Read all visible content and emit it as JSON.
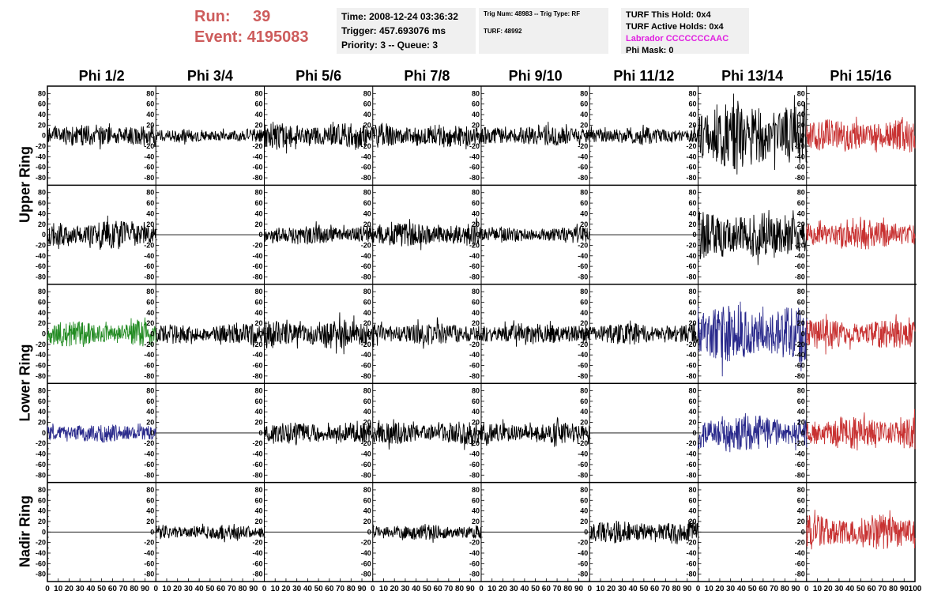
{
  "run_info": {
    "run_label": "Run:",
    "run_value": "39",
    "event_label": "Event:",
    "event_value": "4195083"
  },
  "time_box": {
    "time": "Time: 2008-12-24 03:36:32",
    "trigger": "Trigger: 457.693076 ms",
    "priority": "Priority: 3 -- Queue: 3"
  },
  "trig_box": {
    "trig": "Trig Num: 48983 -- Trig Type: RF",
    "turf": "TURF: 48992"
  },
  "turf_box": {
    "this_hold": "TURF This Hold: 0x4",
    "active_holds": "TURF Active Holds: 0x4",
    "labrador": "Labrador CCCCCCCAAC",
    "phi_mask": "Phi Mask: 0"
  },
  "colors": {
    "black": "#000000",
    "red": "#c83232",
    "green": "#228b22",
    "blue": "#2a2a8c",
    "title_red": "#cd5c5c",
    "magenta": "#e020e0"
  },
  "chart_data": {
    "type": "line",
    "columns": [
      "Phi 1/2",
      "Phi 3/4",
      "Phi 5/6",
      "Phi 7/8",
      "Phi 9/10",
      "Phi 11/12",
      "Phi 13/14",
      "Phi 15/16"
    ],
    "ring_labels": [
      {
        "name": "Upper Ring",
        "rows": [
          0,
          1
        ]
      },
      {
        "name": "Lower Ring",
        "rows": [
          2,
          3
        ]
      },
      {
        "name": "Nadir Ring",
        "rows": [
          4
        ]
      }
    ],
    "xlim": [
      0,
      100
    ],
    "x_ticks": [
      0,
      10,
      20,
      30,
      40,
      50,
      60,
      70,
      80,
      90,
      100
    ],
    "ylim": [
      -85,
      85
    ],
    "y_ticks": [
      -80,
      -60,
      -40,
      -20,
      0,
      20,
      40,
      60,
      80
    ],
    "n_samples": 260,
    "grid": false,
    "panels": [
      [
        {
          "color": "black",
          "amp": 18,
          "seed": 11
        },
        {
          "color": "black",
          "amp": 11,
          "seed": 12
        },
        {
          "color": "black",
          "amp": 20,
          "seed": 13
        },
        {
          "color": "black",
          "amp": 19,
          "seed": 14
        },
        {
          "color": "black",
          "amp": 17,
          "seed": 15
        },
        {
          "color": "black",
          "amp": 14,
          "seed": 16
        },
        {
          "color": "black",
          "amp": 55,
          "seed": 17
        },
        {
          "color": "red",
          "amp": 27,
          "seed": 18
        }
      ],
      [
        {
          "color": "black",
          "amp": 22,
          "seed": 21
        },
        {
          "color": "black",
          "amp": 0,
          "seed": 22
        },
        {
          "color": "black",
          "amp": 16,
          "seed": 23
        },
        {
          "color": "black",
          "amp": 19,
          "seed": 24
        },
        {
          "color": "black",
          "amp": 13,
          "seed": 25
        },
        {
          "color": "black",
          "amp": 0,
          "seed": 26
        },
        {
          "color": "black",
          "amp": 40,
          "seed": 27
        },
        {
          "color": "red",
          "amp": 24,
          "seed": 28
        }
      ],
      [
        {
          "color": "green",
          "amp": 20,
          "seed": 31
        },
        {
          "color": "black",
          "amp": 16,
          "seed": 32
        },
        {
          "color": "black",
          "amp": 24,
          "seed": 33
        },
        {
          "color": "black",
          "amp": 18,
          "seed": 34
        },
        {
          "color": "black",
          "amp": 18,
          "seed": 35
        },
        {
          "color": "black",
          "amp": 17,
          "seed": 36
        },
        {
          "color": "blue",
          "amp": 45,
          "seed": 37
        },
        {
          "color": "red",
          "amp": 24,
          "seed": 38
        }
      ],
      [
        {
          "color": "blue",
          "amp": 15,
          "seed": 41
        },
        {
          "color": "black",
          "amp": 0,
          "seed": 42
        },
        {
          "color": "black",
          "amp": 17,
          "seed": 43
        },
        {
          "color": "black",
          "amp": 18,
          "seed": 44
        },
        {
          "color": "black",
          "amp": 17,
          "seed": 45
        },
        {
          "color": "black",
          "amp": 0,
          "seed": 46
        },
        {
          "color": "blue",
          "amp": 30,
          "seed": 47
        },
        {
          "color": "red",
          "amp": 27,
          "seed": 48
        }
      ],
      [
        {
          "color": "black",
          "amp": 0,
          "seed": 51
        },
        {
          "color": "black",
          "amp": 12,
          "seed": 52
        },
        {
          "color": "black",
          "amp": 0,
          "seed": 53
        },
        {
          "color": "black",
          "amp": 13,
          "seed": 54
        },
        {
          "color": "black",
          "amp": 0,
          "seed": 55
        },
        {
          "color": "black",
          "amp": 18,
          "seed": 56
        },
        {
          "color": "black",
          "amp": 0,
          "seed": 57
        },
        {
          "color": "red",
          "amp": 28,
          "seed": 58
        }
      ]
    ]
  }
}
